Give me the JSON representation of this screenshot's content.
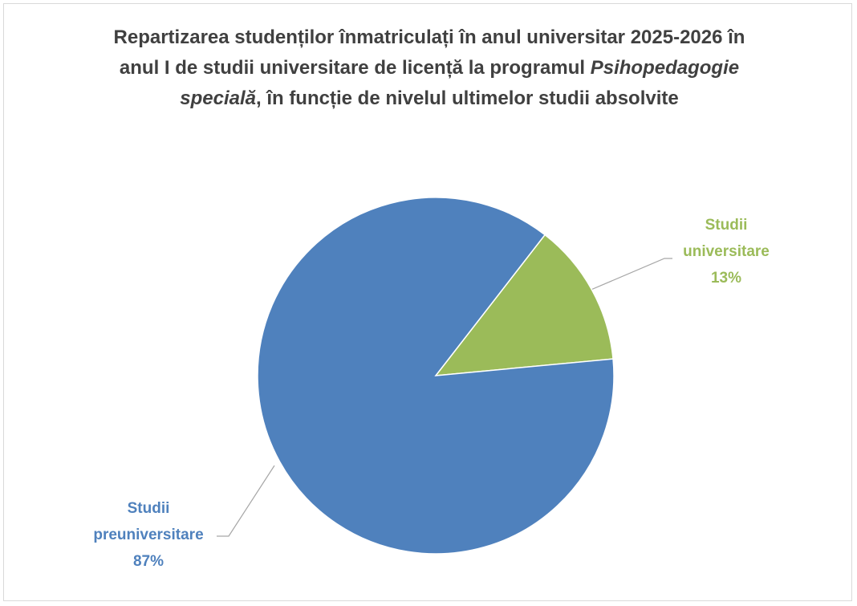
{
  "chart_data": {
    "type": "pie",
    "title": [
      "Repartizarea studenților înmatriculați în anul universitar 2025-2026 în anul I de studii universitare de licență la programul ",
      "Psihopedagogie specială",
      ", în funcție de nivelul ultimelor studii absolvite"
    ],
    "categories": [
      "Studii universitare",
      "Studii preuniversitare"
    ],
    "values": [
      13,
      87
    ],
    "value_labels": [
      "13%",
      "87%"
    ],
    "colors": [
      "#9bbb59",
      "#4f81bd"
    ]
  }
}
